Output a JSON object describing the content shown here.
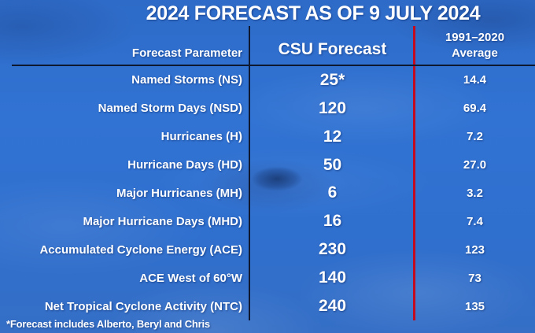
{
  "title": "2024 FORECAST AS OF 9 JULY 2024",
  "table": {
    "header": {
      "parameter": "Forecast Parameter",
      "forecast": "CSU Forecast",
      "average_line1": "1991–2020",
      "average_line2": "Average"
    },
    "rows": [
      {
        "parameter": "Named Storms (NS)",
        "forecast": "25*",
        "average": "14.4"
      },
      {
        "parameter": "Named Storm Days (NSD)",
        "forecast": "120",
        "average": "69.4"
      },
      {
        "parameter": "Hurricanes (H)",
        "forecast": "12",
        "average": "7.2"
      },
      {
        "parameter": "Hurricane Days (HD)",
        "forecast": "50",
        "average": "27.0"
      },
      {
        "parameter": "Major Hurricanes (MH)",
        "forecast": "6",
        "average": "3.2"
      },
      {
        "parameter": "Major Hurricane Days (MHD)",
        "forecast": "16",
        "average": "7.4"
      },
      {
        "parameter": "Accumulated Cyclone Energy (ACE)",
        "forecast": "230",
        "average": "123"
      },
      {
        "parameter": "ACE West of 60°W",
        "forecast": "140",
        "average": "73"
      },
      {
        "parameter": "Net Tropical Cyclone Activity (NTC)",
        "forecast": "240",
        "average": "135"
      }
    ]
  },
  "footnote": "*Forecast includes Alberto, Beryl and Chris",
  "colors": {
    "background": "#2f6fce",
    "divider_dark": "#0e1830",
    "divider_red": "#c40a1e",
    "text": "#ffffff"
  },
  "chart_data": {
    "type": "table",
    "title": "2024 FORECAST AS OF 9 JULY 2024",
    "columns": [
      "Forecast Parameter",
      "CSU Forecast",
      "1991–2020 Average"
    ],
    "rows": [
      [
        "Named Storms (NS)",
        "25*",
        14.4
      ],
      [
        "Named Storm Days (NSD)",
        120,
        69.4
      ],
      [
        "Hurricanes (H)",
        12,
        7.2
      ],
      [
        "Hurricane Days (HD)",
        50,
        27.0
      ],
      [
        "Major Hurricanes (MH)",
        6,
        3.2
      ],
      [
        "Major Hurricane Days (MHD)",
        16,
        7.4
      ],
      [
        "Accumulated Cyclone Energy (ACE)",
        230,
        123
      ],
      [
        "ACE West of 60°W",
        140,
        73
      ],
      [
        "Net Tropical Cyclone Activity (NTC)",
        240,
        135
      ]
    ],
    "footnote": "*Forecast includes Alberto, Beryl and Chris"
  }
}
